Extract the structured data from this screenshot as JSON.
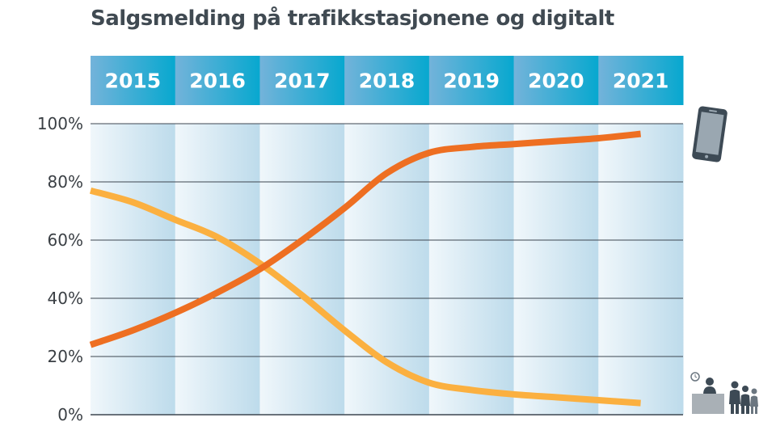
{
  "chart_data": {
    "type": "line",
    "title": "Salgsmelding på trafikkstasjonene og digitalt",
    "categories": [
      "2015",
      "2016",
      "2017",
      "2018",
      "2019",
      "2020",
      "2021"
    ],
    "ylim": [
      0,
      100
    ],
    "yticks": [
      0,
      20,
      40,
      60,
      80,
      100
    ],
    "ytick_labels": [
      "0%",
      "20%",
      "40%",
      "60%",
      "80%",
      "100%"
    ],
    "x": [
      2015.0,
      2015.5,
      2016.0,
      2016.5,
      2017.0,
      2017.5,
      2018.0,
      2018.5,
      2019.0,
      2019.5,
      2020.0,
      2020.5,
      2021.0,
      2021.5
    ],
    "series": [
      {
        "name": "digitalt",
        "icon": "mobile-phone-icon",
        "color": "#ee6f22",
        "values": [
          24,
          29,
          35,
          42,
          50,
          60,
          71,
          83,
          90,
          92,
          93,
          94,
          95,
          96.5
        ]
      },
      {
        "name": "trafikkstasjonene",
        "icon": "service-counter-queue-icon",
        "color": "#fbb040",
        "values": [
          77,
          73,
          67,
          61,
          52,
          41,
          29,
          18,
          11,
          8.5,
          7,
          6,
          5,
          4
        ]
      }
    ]
  }
}
